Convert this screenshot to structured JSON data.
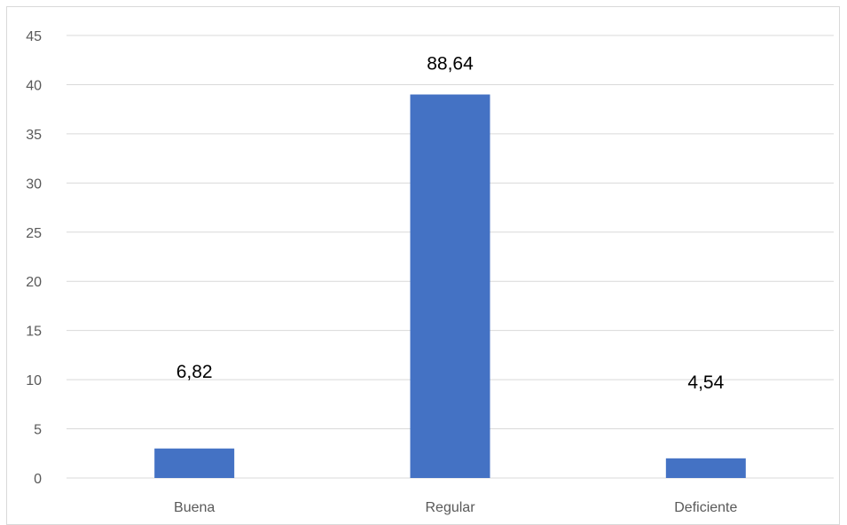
{
  "chart_data": {
    "type": "bar",
    "categories": [
      "Buena",
      "Regular",
      "Deficiente"
    ],
    "values": [
      3,
      39,
      2
    ],
    "data_labels": [
      "6,82",
      "88,64",
      "4,54"
    ],
    "ylim": [
      0,
      45
    ],
    "yticks": [
      "0",
      "5",
      "10",
      "15",
      "20",
      "25",
      "30",
      "35",
      "40",
      "45"
    ],
    "grid": true,
    "legend": "none",
    "bar_color": "#4472c4",
    "title": "",
    "xlabel": "",
    "ylabel": ""
  }
}
